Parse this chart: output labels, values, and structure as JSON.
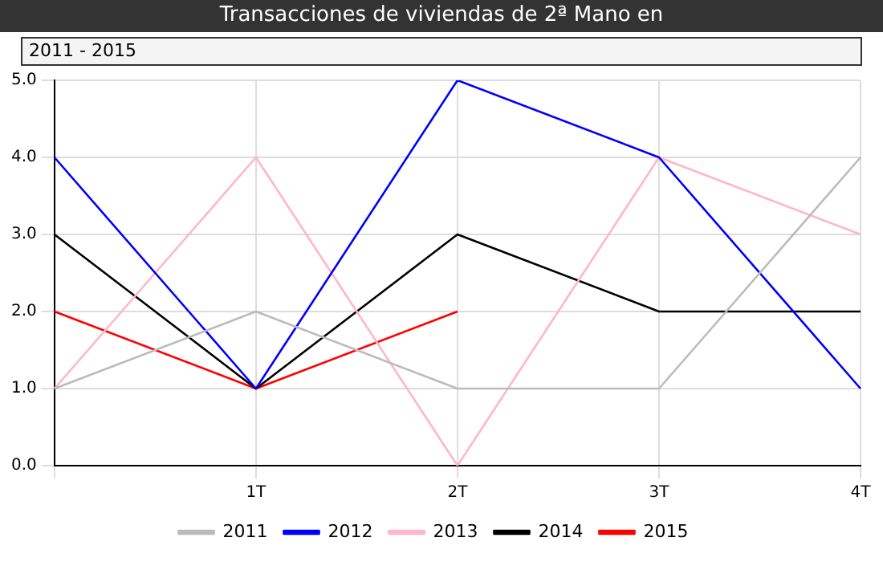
{
  "chart_data": {
    "type": "line",
    "title": "Transacciones de viviendas de 2ª Mano en",
    "subtitle": "2011 - 2015",
    "categories": [
      null,
      "1T",
      "2T",
      "3T",
      "4T"
    ],
    "series": [
      {
        "name": "2011",
        "color": "#bbbbbb",
        "values": [
          1,
          2,
          1,
          1,
          4
        ]
      },
      {
        "name": "2012",
        "color": "#0000ff",
        "values": [
          4,
          1,
          5,
          4,
          1
        ]
      },
      {
        "name": "2013",
        "color": "#ffb6c8",
        "values": [
          1,
          4,
          0,
          4,
          3
        ]
      },
      {
        "name": "2014",
        "color": "#000000",
        "values": [
          3,
          1,
          3,
          2,
          2
        ]
      },
      {
        "name": "2015",
        "color": "#ff0000",
        "values": [
          2,
          1,
          2,
          null,
          null
        ]
      }
    ],
    "ylim": [
      0,
      5
    ],
    "yticks": [
      {
        "value": 0,
        "label": "0.0"
      },
      {
        "value": 1,
        "label": "1.0"
      },
      {
        "value": 2,
        "label": "2.0"
      },
      {
        "value": 3,
        "label": "3.0"
      },
      {
        "value": 4,
        "label": "4.0"
      },
      {
        "value": 5,
        "label": "5.0"
      }
    ],
    "grid": true,
    "legend": "bottom",
    "marker": "none",
    "line_style": "solid"
  }
}
